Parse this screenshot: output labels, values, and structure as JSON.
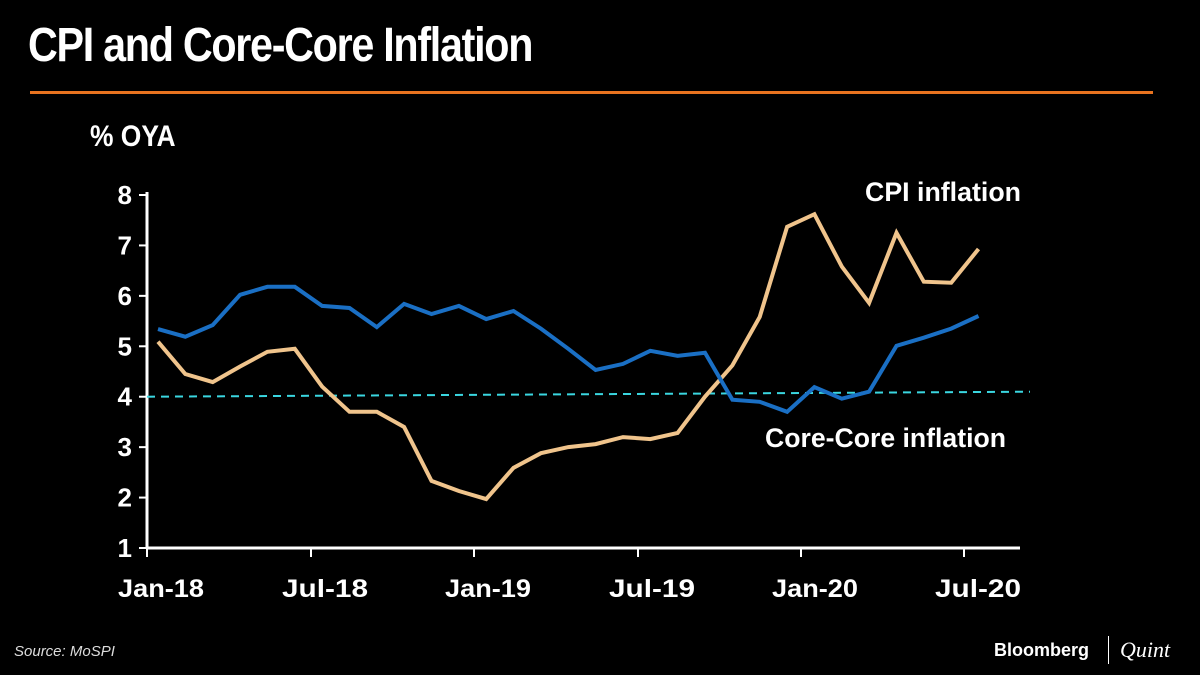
{
  "header": {
    "title": "CPI and Core-Core Inflation",
    "accent_color": "#e8731f"
  },
  "footer": {
    "source": "Source: MoSPI",
    "brand_left": "Bloomberg",
    "brand_right": "Quint"
  },
  "chart_data": {
    "type": "line",
    "title": "CPI and Core-Core Inflation",
    "ylabel": "% OYA",
    "xlabel": "",
    "ylim": [
      1,
      8
    ],
    "yticks": [
      "1",
      "2",
      "3",
      "4",
      "5",
      "6",
      "7",
      "8"
    ],
    "xtick_labels": [
      "Jan-18",
      "Jul-18",
      "Jan-19",
      "Jul-19",
      "Jan-20",
      "Jul-20"
    ],
    "x": [
      "Jan-18",
      "Feb-18",
      "Mar-18",
      "Apr-18",
      "May-18",
      "Jun-18",
      "Jul-18",
      "Aug-18",
      "Sep-18",
      "Oct-18",
      "Nov-18",
      "Dec-18",
      "Jan-19",
      "Feb-19",
      "Mar-19",
      "Apr-19",
      "May-19",
      "Jun-19",
      "Jul-19",
      "Aug-19",
      "Sep-19",
      "Oct-19",
      "Nov-19",
      "Dec-19",
      "Jan-20",
      "Feb-20",
      "Mar-20",
      "Apr-20",
      "May-20",
      "Jun-20",
      "Jul-20"
    ],
    "series": [
      {
        "name": "CPI inflation",
        "color": "#f0c48c",
        "values": [
          5.09,
          4.45,
          4.29,
          4.6,
          4.89,
          4.95,
          4.2,
          3.7,
          3.7,
          3.4,
          2.33,
          2.13,
          1.97,
          2.59,
          2.88,
          3.0,
          3.06,
          3.2,
          3.16,
          3.28,
          4.0,
          4.62,
          5.58,
          7.37,
          7.62,
          6.58,
          5.86,
          7.25,
          6.28,
          6.26,
          6.93
        ]
      },
      {
        "name": "Core-Core inflation",
        "color": "#1a6fc4",
        "values": [
          5.34,
          5.19,
          5.42,
          6.02,
          6.18,
          6.18,
          5.8,
          5.76,
          5.38,
          5.84,
          5.64,
          5.8,
          5.54,
          5.7,
          5.35,
          4.95,
          4.53,
          4.65,
          4.91,
          4.81,
          4.87,
          3.94,
          3.9,
          3.7,
          4.19,
          3.96,
          4.1,
          5.01,
          5.17,
          5.35,
          5.6
        ]
      }
    ],
    "reference_line": {
      "value": 4,
      "style": "dashed",
      "color": "#3ad6e0"
    },
    "grid": false,
    "legend": "inline labels"
  }
}
